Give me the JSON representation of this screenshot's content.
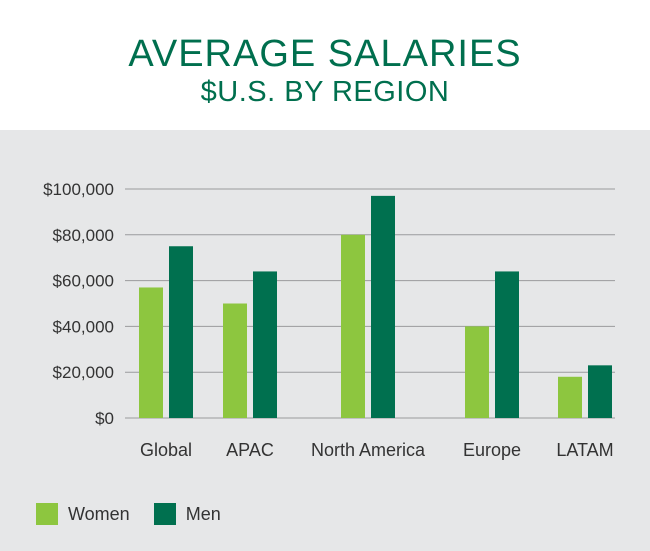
{
  "chart_data": {
    "type": "bar",
    "title": "AVERAGE SALARIES",
    "subtitle": "$U.S. BY REGION",
    "categories": [
      "Global",
      "APAC",
      "North America",
      "Europe",
      "LATAM"
    ],
    "series": [
      {
        "name": "Women",
        "color": "#8dc63f",
        "values": [
          57000,
          50000,
          80000,
          40000,
          18000
        ]
      },
      {
        "name": "Men",
        "color": "#00704f",
        "values": [
          75000,
          64000,
          97000,
          64000,
          23000
        ]
      }
    ],
    "ylim": [
      0,
      100000
    ],
    "yticks": [
      0,
      20000,
      40000,
      60000,
      80000,
      100000
    ],
    "ytick_labels": [
      "$0",
      "$20,000",
      "$40,000",
      "$60,000",
      "$80,000",
      "$100,000"
    ],
    "grid": true,
    "legend_position": "bottom-left"
  }
}
